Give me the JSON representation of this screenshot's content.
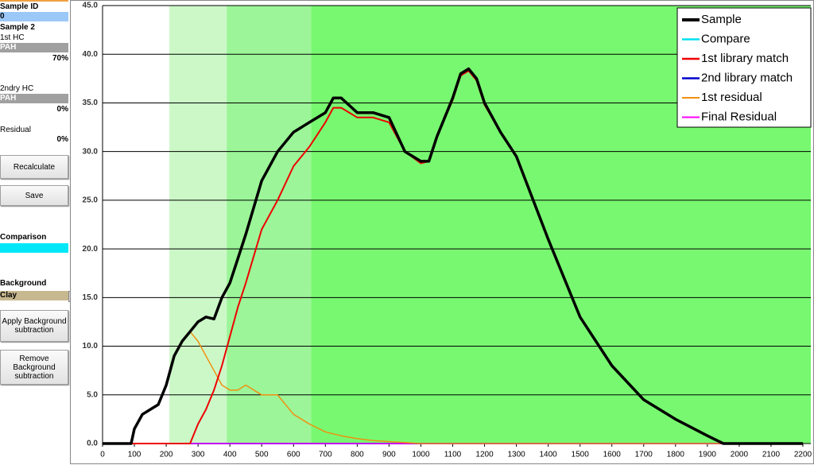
{
  "panel": {
    "sample_id_label": "Sample ID",
    "sample_id": "0",
    "sample_name": "Sample 2",
    "first_hc_label": "1st HC",
    "first_hc": "PAH",
    "first_hc_pct": "70%",
    "second_hc_label": "2ndry HC",
    "second_hc": "PAH",
    "second_hc_pct": "0%",
    "residual_label": "Residual",
    "residual_pct": "0%",
    "recalculate": "Recalculate",
    "save": "Save",
    "comparison_label": "Comparison",
    "background_label": "Background",
    "background": "Clay",
    "apply_background": "Apply Background subtraction",
    "remove_background": "Remove Background subtraction"
  },
  "chart_data": {
    "type": "line",
    "x": [
      0,
      50,
      90,
      100,
      125,
      150,
      175,
      200,
      225,
      250,
      275,
      300,
      325,
      350,
      375,
      400,
      425,
      450,
      500,
      550,
      600,
      650,
      700,
      725,
      750,
      800,
      850,
      900,
      950,
      1000,
      1025,
      1050,
      1100,
      1125,
      1150,
      1175,
      1200,
      1250,
      1300,
      1400,
      1500,
      1600,
      1700,
      1800,
      1900,
      1950,
      2000,
      2100,
      2200
    ],
    "series": [
      {
        "name": "Sample",
        "color": "#000000",
        "width": 3.5,
        "values": [
          0,
          0,
          0,
          1.5,
          3,
          3.5,
          4,
          6,
          9,
          10.5,
          11.5,
          12.5,
          13,
          12.8,
          15,
          16.5,
          19,
          21.5,
          27,
          30,
          32,
          33,
          34,
          35.5,
          35.5,
          34,
          34,
          33.5,
          30,
          29,
          29,
          31.5,
          35.5,
          38,
          38.5,
          37.5,
          35,
          32,
          29.5,
          21,
          13,
          8,
          4.5,
          2.5,
          0.8,
          0,
          0,
          0,
          0
        ]
      },
      {
        "name": "Compare",
        "color": "#00e0f0",
        "width": 2,
        "values": [
          0,
          0,
          0,
          0,
          0,
          0,
          0,
          0,
          0,
          0,
          0,
          0,
          0,
          0,
          0,
          0,
          0,
          0,
          0,
          0,
          0,
          0,
          0,
          0,
          0,
          0,
          0,
          0,
          0,
          0,
          0,
          0,
          0,
          0,
          0,
          0,
          0,
          0,
          0,
          0,
          0,
          0,
          0,
          0,
          0,
          0,
          0,
          0,
          0
        ]
      },
      {
        "name": "1st library match",
        "color": "#ee0000",
        "width": 2,
        "values": [
          0,
          0,
          0,
          0,
          0,
          0,
          0,
          0,
          0,
          0,
          0,
          2,
          3.5,
          5.5,
          8,
          11,
          14,
          16.5,
          22,
          25,
          28.5,
          30.5,
          33,
          34.5,
          34.5,
          33.5,
          33.5,
          33,
          30,
          28.8,
          29,
          31.5,
          35.3,
          37.8,
          38.3,
          37.3,
          34.8,
          32,
          29.5,
          21,
          13,
          8,
          4.5,
          2.5,
          0.8,
          0,
          0,
          0,
          0
        ]
      },
      {
        "name": "2nd library match",
        "color": "#0000cc",
        "width": 2,
        "values": [
          0,
          0,
          0,
          0,
          0,
          0,
          0,
          0,
          0,
          0,
          0,
          0,
          0,
          0,
          0,
          0,
          0,
          0,
          0,
          0,
          0,
          0,
          0,
          0,
          0,
          0,
          0,
          0,
          0,
          0,
          0,
          0,
          0,
          0,
          0,
          0,
          0,
          0,
          0,
          0,
          0,
          0,
          0,
          0,
          0,
          0,
          0,
          0,
          0
        ]
      },
      {
        "name": "1st residual",
        "color": "#f09010",
        "width": 1.5,
        "values": [
          0,
          0,
          0,
          1.5,
          3,
          3.5,
          4,
          6,
          9,
          10.5,
          11.5,
          10.5,
          9,
          7.5,
          6,
          5.5,
          5.5,
          6,
          5,
          5,
          3,
          2,
          1.2,
          1,
          0.8,
          0.5,
          0.3,
          0.2,
          0.1,
          0,
          0,
          0,
          0,
          0,
          0,
          0,
          0,
          0,
          0,
          0,
          0,
          0,
          0,
          0,
          0,
          0,
          0,
          0,
          0
        ]
      },
      {
        "name": "Final Residual",
        "color": "#ff00ff",
        "width": 1.5,
        "values": [
          0,
          0,
          0,
          0,
          0,
          0,
          0,
          0,
          0,
          0,
          0,
          0,
          0,
          0,
          0,
          0,
          0,
          0,
          0,
          0,
          0,
          0,
          0,
          0,
          0,
          0,
          0,
          0,
          0,
          0,
          0,
          0,
          0,
          0,
          0,
          0,
          0,
          0,
          0,
          0,
          0,
          0,
          0,
          0,
          0,
          0,
          0,
          0,
          0
        ]
      }
    ],
    "bands": [
      {
        "from": 210,
        "to": 390,
        "color": "#ccf8c8"
      },
      {
        "from": 390,
        "to": 655,
        "color": "#9cf598"
      },
      {
        "from": 655,
        "to": 2225,
        "color": "#78f870"
      }
    ],
    "xlim": [
      0,
      2225
    ],
    "ylim": [
      0,
      45
    ],
    "xticks": [
      0,
      100,
      200,
      300,
      400,
      500,
      600,
      700,
      800,
      900,
      1000,
      1100,
      1200,
      1300,
      1400,
      1500,
      1600,
      1700,
      1800,
      1900,
      2000,
      2100,
      2200
    ],
    "yticks": [
      {
        "value": 0,
        "label": "0.0"
      },
      {
        "value": 5,
        "label": "5.0"
      },
      {
        "value": 10,
        "label": "10.0"
      },
      {
        "value": 15,
        "label": "15.0"
      },
      {
        "value": 20,
        "label": "20.0"
      },
      {
        "value": 25,
        "label": "25.0"
      },
      {
        "value": 30,
        "label": "30.0"
      },
      {
        "value": 35,
        "label": "35.0"
      },
      {
        "value": 40,
        "label": "40.0"
      },
      {
        "value": 45,
        "label": "45.0"
      }
    ],
    "grid": true,
    "legend": "top-right"
  }
}
